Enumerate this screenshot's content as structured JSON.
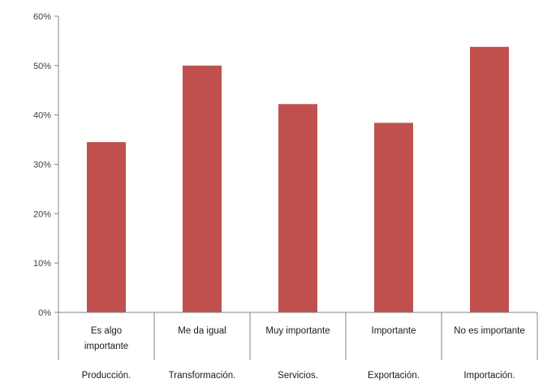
{
  "chart_data": {
    "type": "bar",
    "categories": [
      {
        "group": "Producción.",
        "label_lines": [
          "Es algo",
          "importante"
        ]
      },
      {
        "group": "Transformación.",
        "label_lines": [
          "Me da igual"
        ]
      },
      {
        "group": "Servicios.",
        "label_lines": [
          "Muy importante"
        ]
      },
      {
        "group": "Exportación.",
        "label_lines": [
          "Importante"
        ]
      },
      {
        "group": "Importación.",
        "label_lines": [
          "No es importante"
        ]
      }
    ],
    "values": [
      34.5,
      50.0,
      42.2,
      38.4,
      53.8
    ],
    "ylim": [
      0,
      60
    ],
    "yticks": [
      "0%",
      "10%",
      "20%",
      "30%",
      "40%",
      "50%",
      "60%"
    ],
    "ytick_values": [
      0,
      10,
      20,
      30,
      40,
      50,
      60
    ],
    "bar_color": "#c0504d",
    "axis_color": "#868686",
    "grid": false,
    "legend": "none"
  }
}
